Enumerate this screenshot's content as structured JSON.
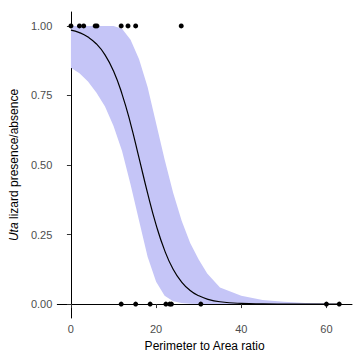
{
  "chart_data": {
    "type": "line",
    "xlabel": "Perimeter to Area ratio",
    "ylabel": "Uta lizard presence/absence",
    "xlim": [
      -3.2,
      66
    ],
    "xticks": [
      0,
      20,
      40,
      60
    ],
    "ylim": [
      -0.05,
      1.05
    ],
    "yticks": [
      {
        "value": 0,
        "label": "0.00"
      },
      {
        "value": 0.25,
        "label": "0.25"
      },
      {
        "value": 0.5,
        "label": "0.50"
      },
      {
        "value": 0.75,
        "label": "0.75"
      },
      {
        "value": 1,
        "label": "1.00"
      }
    ],
    "grid": false,
    "series": [
      {
        "type": "area",
        "color": "#c5c5f7",
        "x": [
          0,
          2,
          4,
          6,
          8,
          10,
          12,
          14,
          16,
          18,
          20,
          22,
          24,
          26,
          28,
          30,
          32,
          35,
          40,
          45,
          50,
          55,
          60,
          63
        ],
        "lower": [
          0.85,
          0.83,
          0.8,
          0.76,
          0.71,
          0.64,
          0.55,
          0.43,
          0.3,
          0.17,
          0.08,
          0.03,
          0.01,
          0.004,
          0.001,
          0,
          0,
          0,
          0,
          0,
          0,
          0,
          0,
          0
        ],
        "upper": [
          1.0,
          1.0,
          1.0,
          1.0,
          1.0,
          1.0,
          0.99,
          0.95,
          0.88,
          0.78,
          0.65,
          0.52,
          0.4,
          0.3,
          0.22,
          0.16,
          0.11,
          0.06,
          0.03,
          0.015,
          0.008,
          0.004,
          0.002,
          0.001
        ]
      },
      {
        "type": "line",
        "color": "#000000",
        "x": [
          0,
          2,
          4,
          6,
          8,
          10,
          12,
          14,
          16,
          18,
          20,
          22,
          24,
          26,
          28,
          30,
          32,
          35,
          40,
          45,
          50,
          55,
          60,
          63
        ],
        "values": [
          0.985,
          0.976,
          0.96,
          0.935,
          0.896,
          0.838,
          0.755,
          0.649,
          0.525,
          0.399,
          0.285,
          0.193,
          0.125,
          0.079,
          0.049,
          0.03,
          0.018,
          0.0085,
          0.0024,
          0.0007,
          0.0002,
          5e-05,
          1e-05,
          0
        ]
      },
      {
        "type": "scatter",
        "color": "#000000",
        "marker": "circle",
        "x": [
          0,
          2,
          3,
          5.7,
          6.1,
          11.8,
          13.4,
          15.2,
          25.9,
          11.8,
          15.2,
          18.6,
          22.3,
          23.2,
          23.6,
          30.5,
          60,
          63
        ],
        "values": [
          1,
          1,
          1,
          1,
          1,
          1,
          1,
          1,
          1,
          0,
          0,
          0,
          0,
          0,
          0,
          0,
          0,
          0
        ]
      }
    ]
  }
}
